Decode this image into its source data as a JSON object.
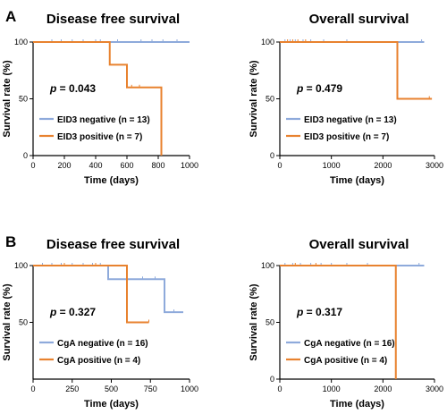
{
  "colors": {
    "negative": "#8eaadb",
    "positive": "#e8822f",
    "axis": "#000000"
  },
  "chart_data": [
    {
      "type": "line",
      "panel_letter": "A",
      "title": "Disease free survival",
      "xlabel": "Time (days)",
      "ylabel": "Survival rate (%)",
      "xlim": [
        0,
        1000
      ],
      "ylim": [
        0,
        100
      ],
      "xticks": [
        0,
        200,
        400,
        600,
        800,
        1000
      ],
      "yticks": [
        0,
        50,
        100
      ],
      "p_label": "p",
      "p_value": " = 0.043",
      "legend_position": "bottom-center",
      "series": [
        {
          "name": "EID3 negative (n = 13)",
          "color": "#8eaadb",
          "x": [
            0,
            1000
          ],
          "y": [
            100,
            100
          ],
          "censor": [
            120,
            180,
            250,
            320,
            400,
            430,
            540,
            690,
            760,
            830,
            920
          ]
        },
        {
          "name": "EID3 positive (n = 7)",
          "color": "#e8822f",
          "x": [
            0,
            490,
            490,
            600,
            600,
            820,
            820
          ],
          "y": [
            100,
            100,
            80,
            80,
            60,
            60,
            0
          ],
          "censor": [
            630,
            680
          ]
        }
      ]
    },
    {
      "type": "line",
      "title": "Overall survival",
      "xlabel": "Time (days)",
      "ylabel": "Survival rate (%)",
      "xlim": [
        0,
        3000
      ],
      "ylim": [
        0,
        100
      ],
      "xticks": [
        0,
        1000,
        2000,
        3000
      ],
      "yticks": [
        0,
        50,
        100
      ],
      "p_label": "p",
      "p_value": " = 0.479",
      "legend_position": "bottom-center",
      "series": [
        {
          "name": "EID3 negative (n = 13)",
          "color": "#8eaadb",
          "x": [
            0,
            2800
          ],
          "y": [
            100,
            100
          ],
          "censor": [
            100,
            200,
            300,
            450,
            600,
            850,
            1300,
            2750
          ]
        },
        {
          "name": "EID3 positive (n = 7)",
          "color": "#e8822f",
          "x": [
            0,
            2280,
            2280,
            2950
          ],
          "y": [
            100,
            100,
            50,
            50
          ],
          "censor": [
            150,
            250,
            350,
            500,
            2900
          ]
        }
      ]
    },
    {
      "type": "line",
      "panel_letter": "B",
      "title": "Disease free survival",
      "xlabel": "Time (days)",
      "ylabel": "Survival rate (%)",
      "xlim": [
        0,
        1000
      ],
      "ylim": [
        0,
        100
      ],
      "xticks": [
        0,
        250,
        500,
        750,
        1000
      ],
      "yticks": [
        50,
        100
      ],
      "p_label": "p",
      "p_value": " = 0.327",
      "legend_position": "bottom-center",
      "series": [
        {
          "name": "CgA negative (n = 16)",
          "color": "#8eaadb",
          "x": [
            0,
            480,
            480,
            840,
            840,
            960
          ],
          "y": [
            100,
            100,
            88,
            88,
            59,
            59
          ],
          "censor": [
            60,
            120,
            180,
            250,
            320,
            380,
            430,
            700,
            780,
            900
          ]
        },
        {
          "name": "CgA positive (n = 4)",
          "color": "#e8822f",
          "x": [
            0,
            600,
            600,
            740
          ],
          "y": [
            100,
            100,
            50,
            50
          ],
          "censor": [
            200,
            400,
            740
          ]
        }
      ]
    },
    {
      "type": "line",
      "title": "Overall survival",
      "xlabel": "Time (days)",
      "ylabel": "Survival rate (%)",
      "xlim": [
        0,
        3000
      ],
      "ylim": [
        0,
        100
      ],
      "xticks": [
        0,
        1000,
        2000,
        3000
      ],
      "yticks": [
        0,
        50,
        100
      ],
      "p_label": "p",
      "p_value": " = 0.317",
      "legend_position": "bottom-center",
      "series": [
        {
          "name": "CgA negative (n = 16)",
          "color": "#8eaadb",
          "x": [
            0,
            2800
          ],
          "y": [
            100,
            100
          ],
          "censor": [
            100,
            250,
            400,
            600,
            800,
            1000,
            1300,
            1700,
            2700
          ]
        },
        {
          "name": "CgA positive (n = 4)",
          "color": "#e8822f",
          "x": [
            0,
            2250,
            2250
          ],
          "y": [
            100,
            100,
            0
          ],
          "censor": [
            300,
            700
          ]
        }
      ]
    }
  ]
}
